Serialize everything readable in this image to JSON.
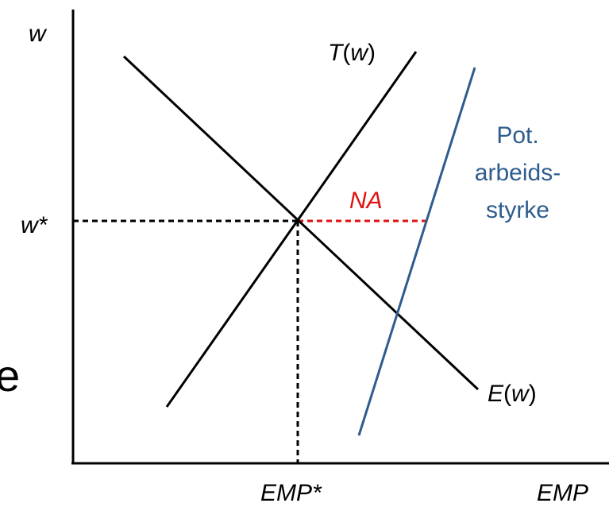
{
  "axes": {
    "y_label": "w",
    "x_label": "EMP",
    "wage_tick": "w*",
    "emp_tick": "EMP*"
  },
  "curves": {
    "t_label": "T(w)",
    "t_label_italic": "T",
    "t_label_rest": "(",
    "t_label_arg": "w",
    "t_label_close": ")",
    "e_label_italic": "E",
    "e_label_rest": "(",
    "e_label_arg": "w",
    "e_label_close": ")",
    "potential_label_lines": [
      "Pot.",
      "arbeids-",
      "styrke"
    ],
    "gap_label": "NA"
  },
  "edge_text": "e",
  "colors": {
    "axis": "#000000",
    "curve": "#000000",
    "potential": "#2e5c8e",
    "gap": "#e01010",
    "guide": "#000000"
  }
}
